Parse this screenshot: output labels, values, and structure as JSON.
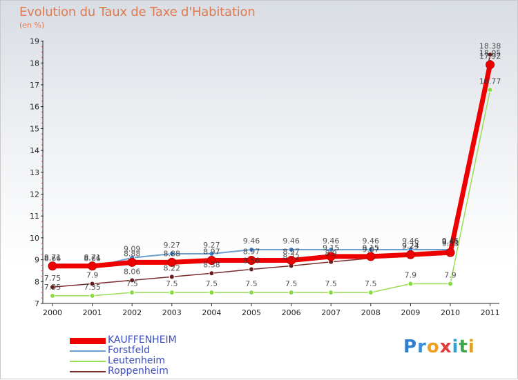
{
  "title": "Evolution du Taux de Taxe d'Habitation",
  "subtitle": "(en %)",
  "logo": {
    "text": "Proxiti",
    "letters": [
      "P",
      "r",
      "o",
      "x",
      "i",
      "t",
      "i"
    ]
  },
  "chart_data": {
    "type": "line",
    "title": "Evolution du Taux de Taxe d'Habitation",
    "ylabel": "(en %)",
    "xlabel": "",
    "ylim": [
      7,
      19
    ],
    "yticks": [
      7,
      8,
      9,
      10,
      11,
      12,
      13,
      14,
      15,
      16,
      17,
      18,
      19
    ],
    "categories": [
      "2000",
      "2001",
      "2002",
      "2003",
      "2004",
      "2005",
      "2006",
      "2007",
      "2008",
      "2009",
      "2010",
      "2011"
    ],
    "series": [
      {
        "name": "KAUFFENHEIM",
        "color": "#ee0000",
        "values": [
          8.71,
          8.71,
          8.88,
          8.88,
          8.97,
          8.97,
          8.97,
          9.15,
          9.15,
          9.23,
          9.33,
          17.92
        ],
        "labels": [
          "8.71",
          "8.71",
          "8.88",
          "8.88",
          "8.97",
          "8.97",
          "8.97",
          "9.15",
          "9.15",
          "9.23",
          "9.33",
          "17.92"
        ]
      },
      {
        "name": "Forstfeld",
        "color": "#6a9fd0",
        "values": [
          8.66,
          8.66,
          9.09,
          9.27,
          9.27,
          9.46,
          9.46,
          9.46,
          9.46,
          9.46,
          9.46,
          18.05
        ],
        "labels": [
          "8.66",
          "8.66",
          "9.09",
          "9.27",
          "9.27",
          "9.46",
          "9.46",
          "9.46",
          "9.46",
          "9.46",
          "9.46",
          "18.05"
        ]
      },
      {
        "name": "Leutenheim",
        "color": "#99dd55",
        "values": [
          7.35,
          7.35,
          7.5,
          7.5,
          7.5,
          7.5,
          7.5,
          7.5,
          7.5,
          7.9,
          7.9,
          16.77
        ],
        "labels": [
          "7.35",
          "7.35",
          "7.5",
          "7.5",
          "7.5",
          "7.5",
          "7.5",
          "7.5",
          "7.5",
          "7.9",
          "7.9",
          "16.77"
        ]
      },
      {
        "name": "Roppenheim",
        "color": "#7a2a2a",
        "values": [
          7.75,
          7.9,
          8.06,
          8.22,
          8.38,
          8.56,
          8.72,
          8.9,
          9.07,
          9.24,
          9.41,
          18.38
        ],
        "labels": [
          "7.75",
          "7.9",
          "8.06",
          "8.22",
          "8.38",
          "8.56",
          "8.72",
          "8.9",
          "9.07",
          "9.24",
          "9.41",
          "18.38"
        ]
      }
    ],
    "legend": [
      "KAUFFENHEIM",
      "Forstfeld",
      "Leutenheim",
      "Roppenheim"
    ],
    "legend_position": "bottom-left",
    "grid": false
  }
}
